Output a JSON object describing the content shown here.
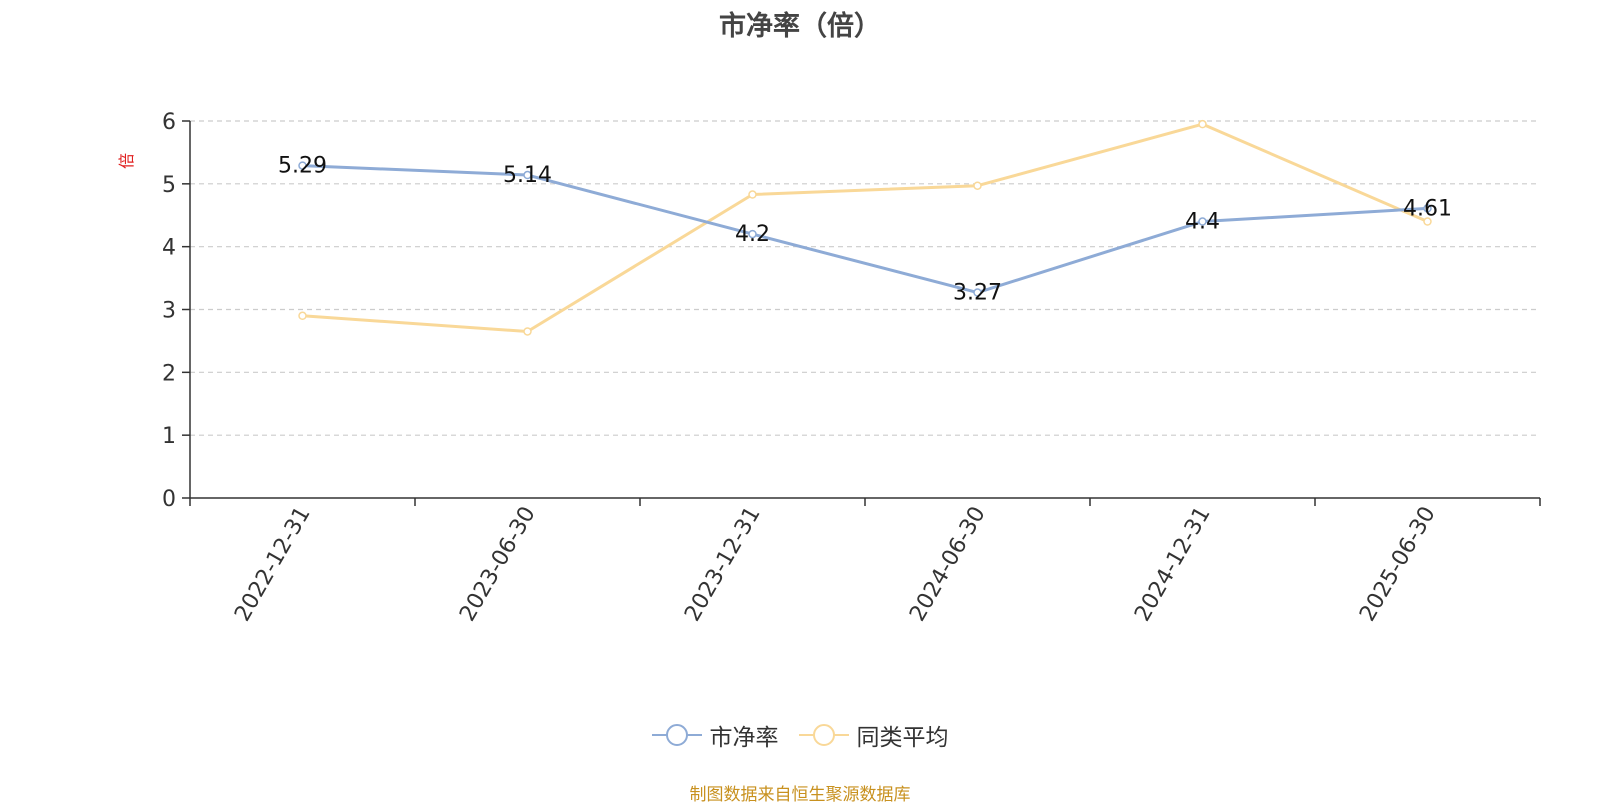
{
  "chart_data": {
    "type": "line",
    "title": "市净率（倍）",
    "ylabel": "倍",
    "categories": [
      "2022-12-31",
      "2023-06-30",
      "2023-12-31",
      "2024-06-30",
      "2024-12-31",
      "2025-06-30"
    ],
    "ylim": [
      0,
      6
    ],
    "yticks": [
      "0",
      "1",
      "2",
      "3",
      "4",
      "5",
      "6"
    ],
    "grid": true,
    "legend_position": "bottom-center",
    "series": [
      {
        "name": "市净率",
        "values": [
          5.29,
          5.14,
          4.2,
          3.27,
          4.4,
          4.61
        ],
        "color": "#8eabd6",
        "labels": [
          "5.29",
          "5.14",
          "4.2",
          "3.27",
          "4.4",
          "4.61"
        ]
      },
      {
        "name": "同类平均",
        "values": [
          2.9,
          2.65,
          4.83,
          4.97,
          5.95,
          4.4
        ],
        "color": "#f9d898"
      }
    ]
  },
  "source_note": "制图数据来自恒生聚源数据库"
}
